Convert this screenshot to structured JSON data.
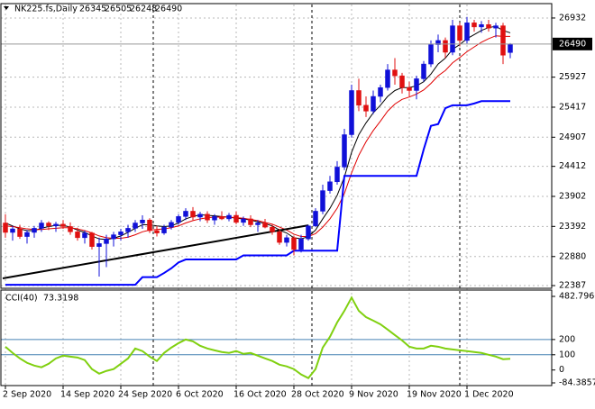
{
  "chart_data": {
    "type": "candlestick",
    "title": "NK225.fs,Daily",
    "up_color": "#1010d8",
    "down_color": "#e01010",
    "categories": [
      "2 Sep 2020",
      null,
      null,
      null,
      null,
      null,
      null,
      null,
      "14 Sep 2020",
      null,
      null,
      null,
      null,
      null,
      null,
      null,
      "24 Sep 2020",
      null,
      null,
      null,
      null,
      null,
      null,
      null,
      "6 Oct 2020",
      null,
      null,
      null,
      null,
      null,
      null,
      null,
      "16 Oct 2020",
      null,
      null,
      null,
      null,
      null,
      null,
      null,
      "28 Oct 2020",
      null,
      null,
      null,
      null,
      null,
      null,
      null,
      "9 Nov 2020",
      null,
      null,
      null,
      null,
      null,
      null,
      null,
      "19 Nov 2020",
      null,
      null,
      null,
      null,
      null,
      null,
      null,
      "1 Dec 2020",
      null,
      null,
      null,
      null,
      null,
      null
    ],
    "ohlc": [
      [
        23450,
        23600,
        23200,
        23290
      ],
      [
        23290,
        23400,
        23150,
        23350
      ],
      [
        23350,
        23420,
        23180,
        23220
      ],
      [
        23220,
        23330,
        23100,
        23290
      ],
      [
        23290,
        23400,
        23200,
        23360
      ],
      [
        23360,
        23500,
        23300,
        23450
      ],
      [
        23450,
        23480,
        23330,
        23400
      ],
      [
        23400,
        23470,
        23300,
        23430
      ],
      [
        23430,
        23500,
        23350,
        23390
      ],
      [
        23390,
        23460,
        23250,
        23300
      ],
      [
        23300,
        23370,
        23150,
        23200
      ],
      [
        23200,
        23320,
        23100,
        23280
      ],
      [
        23280,
        23300,
        23000,
        23050
      ],
      [
        23050,
        23200,
        22540,
        23100
      ],
      [
        23100,
        23250,
        22700,
        23180
      ],
      [
        23180,
        23300,
        23050,
        23250
      ],
      [
        23250,
        23350,
        23150,
        23300
      ],
      [
        23300,
        23420,
        23200,
        23360
      ],
      [
        23360,
        23500,
        23300,
        23450
      ],
      [
        23450,
        23580,
        23350,
        23500
      ],
      [
        23500,
        23530,
        23280,
        23320
      ],
      [
        23320,
        23400,
        23220,
        23280
      ],
      [
        23280,
        23420,
        23250,
        23380
      ],
      [
        23380,
        23500,
        23340,
        23460
      ],
      [
        23460,
        23600,
        23420,
        23560
      ],
      [
        23560,
        23700,
        23500,
        23650
      ],
      [
        23650,
        23720,
        23500,
        23550
      ],
      [
        23550,
        23640,
        23480,
        23600
      ],
      [
        23600,
        23650,
        23450,
        23500
      ],
      [
        23500,
        23600,
        23420,
        23560
      ],
      [
        23560,
        23650,
        23500,
        23520
      ],
      [
        23520,
        23620,
        23480,
        23580
      ],
      [
        23580,
        23650,
        23430,
        23460
      ],
      [
        23460,
        23560,
        23400,
        23520
      ],
      [
        23520,
        23580,
        23380,
        23420
      ],
      [
        23420,
        23500,
        23300,
        23450
      ],
      [
        23450,
        23520,
        23360,
        23380
      ],
      [
        23380,
        23420,
        23250,
        23300
      ],
      [
        23300,
        23350,
        23080,
        23120
      ],
      [
        23120,
        23250,
        23050,
        23200
      ],
      [
        23200,
        23230,
        22900,
        23000
      ],
      [
        23000,
        23250,
        22950,
        23180
      ],
      [
        23180,
        23420,
        23150,
        23400
      ],
      [
        23400,
        23700,
        23380,
        23650
      ],
      [
        23650,
        24100,
        23600,
        24000
      ],
      [
        24000,
        24250,
        23950,
        24150
      ],
      [
        24150,
        24500,
        24100,
        24400
      ],
      [
        24400,
        25050,
        24350,
        24950
      ],
      [
        24950,
        25800,
        24900,
        25700
      ],
      [
        25700,
        25900,
        25350,
        25450
      ],
      [
        25450,
        25600,
        25250,
        25350
      ],
      [
        25350,
        25700,
        25300,
        25600
      ],
      [
        25600,
        25800,
        25500,
        25750
      ],
      [
        25750,
        26150,
        25700,
        26050
      ],
      [
        26050,
        26250,
        25800,
        25950
      ],
      [
        25950,
        26000,
        25650,
        25750
      ],
      [
        25750,
        25850,
        25600,
        25700
      ],
      [
        25700,
        25950,
        25550,
        25900
      ],
      [
        25900,
        26200,
        25850,
        26150
      ],
      [
        26150,
        26550,
        26100,
        26480
      ],
      [
        26480,
        26650,
        26350,
        26550
      ],
      [
        26550,
        26600,
        26250,
        26350
      ],
      [
        26350,
        26900,
        26300,
        26800
      ],
      [
        26800,
        26850,
        26450,
        26550
      ],
      [
        26550,
        26950,
        26500,
        26850
      ],
      [
        26850,
        26900,
        26700,
        26780
      ],
      [
        26780,
        26880,
        26680,
        26820
      ],
      [
        26820,
        26900,
        26700,
        26760
      ],
      [
        26760,
        26850,
        26600,
        26800
      ],
      [
        26800,
        26850,
        26150,
        26300
      ],
      [
        26345,
        26505,
        26248,
        26490
      ]
    ],
    "series": [
      {
        "color": "#000000",
        "width": 1,
        "values": [
          23450,
          23400,
          23350,
          23320,
          23320,
          23360,
          23390,
          23410,
          23410,
          23380,
          23330,
          23290,
          23230,
          23180,
          23170,
          23190,
          23230,
          23290,
          23360,
          23420,
          23420,
          23400,
          23390,
          23400,
          23450,
          23520,
          23560,
          23590,
          23580,
          23570,
          23560,
          23550,
          23530,
          23520,
          23500,
          23470,
          23440,
          23400,
          23330,
          23280,
          23200,
          23180,
          23220,
          23330,
          23520,
          23700,
          23920,
          24230,
          24650,
          24950,
          25150,
          25320,
          25450,
          25600,
          25700,
          25750,
          25750,
          25780,
          25850,
          25980,
          26150,
          26250,
          26400,
          26480,
          26580,
          26650,
          26720,
          26770,
          26790,
          26720,
          26680
        ]
      },
      {
        "color": "#e00000",
        "width": 1,
        "values": [
          23400,
          23390,
          23370,
          23350,
          23340,
          23340,
          23350,
          23360,
          23370,
          23370,
          23350,
          23320,
          23280,
          23230,
          23200,
          23190,
          23190,
          23210,
          23250,
          23300,
          23330,
          23340,
          23350,
          23370,
          23400,
          23450,
          23490,
          23520,
          23540,
          23550,
          23550,
          23550,
          23540,
          23530,
          23510,
          23490,
          23460,
          23430,
          23380,
          23330,
          23260,
          23220,
          23220,
          23270,
          23380,
          23520,
          23700,
          23950,
          24300,
          24600,
          24830,
          25020,
          25180,
          25350,
          25470,
          25550,
          25590,
          25640,
          25710,
          25820,
          25950,
          26040,
          26170,
          26260,
          26360,
          26440,
          26520,
          26580,
          26630,
          26620,
          26620
        ]
      },
      {
        "color": "#0000ff",
        "width": 2,
        "values": [
          22400,
          22400,
          22400,
          22400,
          22400,
          22400,
          22400,
          22400,
          22400,
          22400,
          22400,
          22400,
          22400,
          22400,
          22400,
          22400,
          22400,
          22400,
          22400,
          22530,
          22530,
          22530,
          22600,
          22680,
          22780,
          22830,
          22830,
          22830,
          22830,
          22830,
          22830,
          22830,
          22830,
          22900,
          22900,
          22900,
          22900,
          22900,
          22900,
          22900,
          22980,
          22980,
          22980,
          22980,
          22980,
          22980,
          22980,
          24250,
          24250,
          24250,
          24250,
          24250,
          24250,
          24250,
          24250,
          24250,
          24250,
          24250,
          24700,
          25100,
          25130,
          25400,
          25450,
          25450,
          25450,
          25480,
          25520,
          25520,
          25520,
          25520,
          25520
        ]
      }
    ],
    "trendline": {
      "color": "#000000",
      "values": [
        22510,
        23410
      ]
    },
    "ylim": [
      22341,
      27161
    ],
    "yticks": [
      22387,
      22880,
      23392,
      23902,
      24412,
      24907,
      25417,
      25927,
      26932
    ],
    "grid": true,
    "indicator": {
      "type": "line",
      "label": "CCI(40)",
      "color": "#80d010",
      "level_color": "#4682b4",
      "levels": [
        200,
        100
      ],
      "ylim": [
        -84.3857,
        482.7966
      ],
      "yticks": [
        482.7966,
        200,
        100,
        0,
        -84.3857
      ],
      "values": [
        153,
        112,
        76,
        47,
        29,
        18,
        41,
        76,
        94,
        88,
        82,
        65,
        6,
        -24,
        -6,
        6,
        41,
        76,
        141,
        124,
        88,
        59,
        112,
        147,
        176,
        200,
        188,
        159,
        141,
        129,
        118,
        112,
        124,
        106,
        112,
        94,
        76,
        59,
        35,
        24,
        6,
        -29,
        -53,
        6,
        147,
        218,
        312,
        388,
        475,
        388,
        347,
        324,
        300,
        265,
        229,
        194,
        153,
        141,
        141,
        159,
        153,
        141,
        135,
        129,
        124,
        118,
        112,
        100,
        88,
        71,
        73.3198
      ]
    }
  }
}
